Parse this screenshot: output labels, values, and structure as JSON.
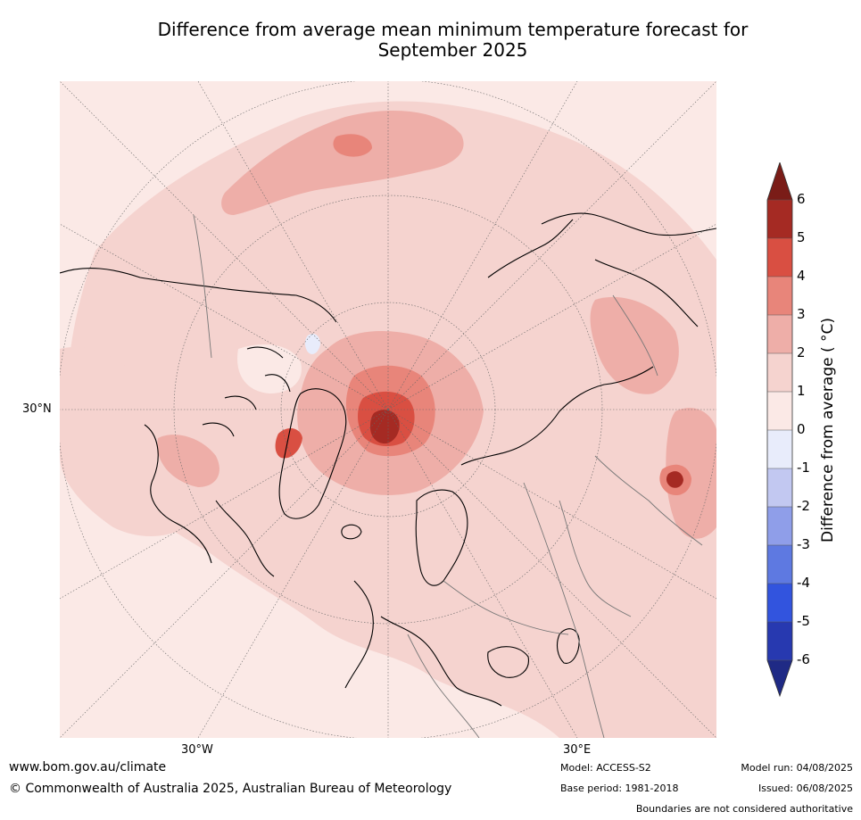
{
  "title": "Difference from average mean minimum temperature forecast for September 2025",
  "map": {
    "axis_labels": {
      "lat_30n": "30°N",
      "lon_30w": "30°W",
      "lon_30e": "30°E"
    },
    "projection": "north-polar-stereographic",
    "background_color": "#fbe9e6"
  },
  "colorbar": {
    "label": "Difference from average ( °C)",
    "ticks": [
      "6",
      "5",
      "4",
      "3",
      "2",
      "1",
      "0",
      "-1",
      "-2",
      "-3",
      "-4",
      "-5",
      "-6"
    ],
    "segments_top_to_bottom": [
      "#a52a23",
      "#d94f42",
      "#e8857a",
      "#eeaea8",
      "#f5d3cf",
      "#fbe9e6",
      "#e8ecfb",
      "#c2c8f1",
      "#8f9ee9",
      "#5e79e1",
      "#3254de",
      "#2739b0"
    ],
    "over_color": "#7a1c17",
    "under_color": "#1f2a85"
  },
  "footer": {
    "url": "www.bom.gov.au/climate",
    "copyright": "© Commonwealth of Australia 2025, Australian Bureau of Meteorology",
    "model": "Model: ACCESS-S2",
    "base_period": "Base period: 1981-2018",
    "model_run": "Model run: 04/08/2025",
    "issued": "Issued: 06/08/2025",
    "disclaimer": "Boundaries are not considered authoritative"
  }
}
